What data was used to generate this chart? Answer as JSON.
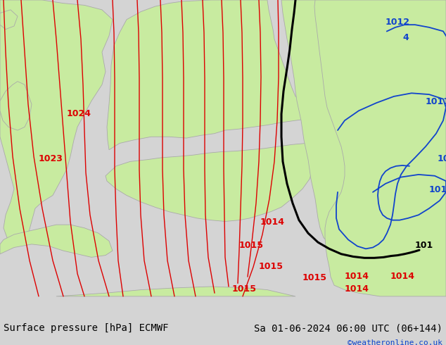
{
  "title_left": "Surface pressure [hPa] ECMWF",
  "title_right": "Sa 01-06-2024 06:00 UTC (06+144)",
  "credit": "©weatheronline.co.uk",
  "sea_color": "#d4d4d4",
  "land_color": "#c8eba0",
  "border_color": "#aaaaaa",
  "contour_red": "#dd0000",
  "contour_black": "#000000",
  "contour_blue": "#1144cc",
  "label_red": "#dd0000",
  "label_black": "#000000",
  "label_blue": "#1144cc",
  "credit_color": "#1144cc",
  "title_fs": 10,
  "credit_fs": 8,
  "bottom_bar_color": "#f4f4f4"
}
